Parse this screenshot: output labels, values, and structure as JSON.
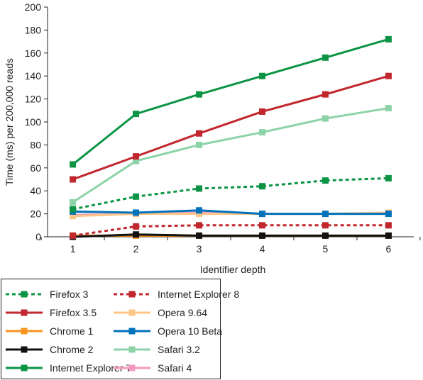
{
  "chart_data": {
    "type": "line",
    "title": "",
    "xlabel": "Identifier depth",
    "ylabel": "Time (ms) per 200,000 reads",
    "x": [
      1,
      2,
      3,
      4,
      5,
      6
    ],
    "ylim": [
      0,
      200
    ],
    "yticks": [
      0,
      20,
      40,
      60,
      80,
      100,
      120,
      140,
      160,
      180,
      200
    ],
    "grid": false,
    "legend_placement": "bottom",
    "series": [
      {
        "name": "Firefox 3",
        "values": [
          24,
          35,
          42,
          44,
          49,
          51
        ],
        "color": "#0b9444",
        "dashed": true
      },
      {
        "name": "Firefox 3.5",
        "values": [
          50,
          70,
          90,
          109,
          124,
          140
        ],
        "color": "#c1272d",
        "dashed": false
      },
      {
        "name": "Chrome 1",
        "values": [
          1,
          1,
          1,
          1,
          1,
          1
        ],
        "color": "#f7941d",
        "dashed": false
      },
      {
        "name": "Chrome 2",
        "values": [
          0,
          2,
          1,
          1,
          1,
          1
        ],
        "color": "#111111",
        "dashed": false
      },
      {
        "name": "Internet Explorer 7",
        "values": [
          63,
          107,
          124,
          140,
          156,
          172
        ],
        "color": "#0b9444",
        "dashed": false
      },
      {
        "name": "Internet Explorer 8",
        "values": [
          1,
          9,
          10,
          10,
          10,
          10
        ],
        "color": "#c1272d",
        "dashed": true
      },
      {
        "name": "Opera 9.64",
        "values": [
          18,
          20,
          20,
          20,
          20,
          21
        ],
        "color": "#fdc689",
        "dashed": false
      },
      {
        "name": "Opera 10 Beta",
        "values": [
          22,
          21,
          23,
          20,
          20,
          20
        ],
        "color": "#0072bc",
        "dashed": false
      },
      {
        "name": "Safari 3.2",
        "values": [
          30,
          66,
          80,
          91,
          103,
          112
        ],
        "color": "#8dd3a8",
        "dashed": false
      },
      {
        "name": "Safari 4",
        "values": [
          19,
          20,
          21,
          20,
          20,
          20
        ],
        "color": "#f49ac1",
        "dashed": false
      }
    ]
  }
}
